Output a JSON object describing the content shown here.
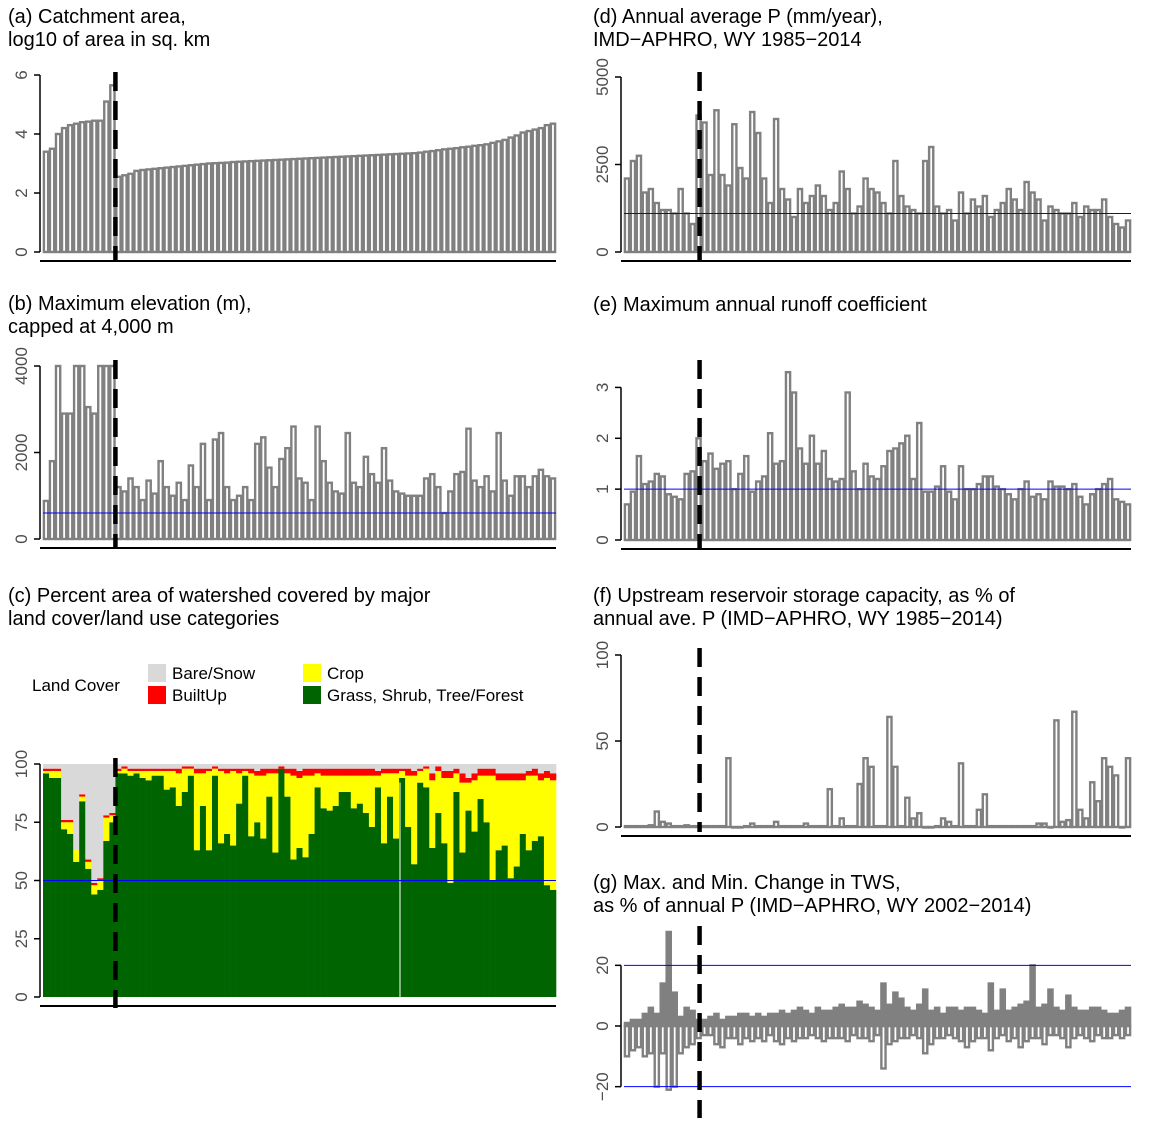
{
  "panels": {
    "a": {
      "title1": "(a) Catchment area,",
      "title2": "log10 of area in sq. km"
    },
    "b": {
      "title1": "(b) Maximum elevation (m),",
      "title2": "capped at 4,000 m"
    },
    "c": {
      "title1": "(c) Percent area of watershed covered by major",
      "title2": "land cover/land use categories"
    },
    "d": {
      "title1": "(d) Annual average P (mm/year),",
      "title2": "IMD−APHRO, WY 1985−2014"
    },
    "e": {
      "title1": "(e) Maximum annual runoff coefficient",
      "title2": ""
    },
    "f": {
      "title1": "(f) Upstream reservoir storage capacity, as % of",
      "title2": "annual ave. P (IMD−APHRO, WY 1985−2014)"
    },
    "g": {
      "title1": "(g) Max. and Min. Change in TWS,",
      "title2": "as % of annual P (IMD−APHRO, WY 2002−2014)"
    }
  },
  "legend": {
    "title": "Land Cover",
    "items": [
      {
        "label": "Bare/Snow",
        "color": "#d9d9d9"
      },
      {
        "label": "Crop",
        "color": "#ffff00"
      },
      {
        "label": "BuiltUp",
        "color": "#ff0000"
      },
      {
        "label": "Grass, Shrub, Tree/Forest",
        "color": "#006400"
      }
    ]
  },
  "colors": {
    "bar_outline": "#808080",
    "ref_line": "#0000ff",
    "divider": "#000000"
  },
  "chart_data": [
    {
      "id": "a",
      "type": "bar",
      "n": 85,
      "divider_after": 12,
      "ylim": [
        0,
        6
      ],
      "yticks": [
        "0",
        "2",
        "4",
        "6"
      ],
      "ylabel": "",
      "xlabel": "",
      "values": [
        3.4,
        3.5,
        4.0,
        4.2,
        4.3,
        4.35,
        4.4,
        4.42,
        4.45,
        4.45,
        5.1,
        5.65,
        2.55,
        2.6,
        2.65,
        2.75,
        2.78,
        2.8,
        2.82,
        2.84,
        2.86,
        2.88,
        2.9,
        2.92,
        2.94,
        2.96,
        2.98,
        3.0,
        3.01,
        3.02,
        3.03,
        3.05,
        3.06,
        3.07,
        3.08,
        3.09,
        3.1,
        3.11,
        3.12,
        3.13,
        3.14,
        3.15,
        3.16,
        3.17,
        3.18,
        3.19,
        3.2,
        3.21,
        3.22,
        3.23,
        3.24,
        3.25,
        3.26,
        3.27,
        3.28,
        3.29,
        3.3,
        3.31,
        3.32,
        3.33,
        3.34,
        3.35,
        3.37,
        3.4,
        3.42,
        3.45,
        3.48,
        3.5,
        3.52,
        3.55,
        3.57,
        3.6,
        3.62,
        3.65,
        3.7,
        3.75,
        3.8,
        3.88,
        3.95,
        4.05,
        4.1,
        4.15,
        4.2,
        4.3,
        4.35
      ]
    },
    {
      "id": "b",
      "type": "bar",
      "n": 85,
      "divider_after": 12,
      "ylim": [
        0,
        4000
      ],
      "yticks": [
        "0",
        "2000",
        "4000"
      ],
      "ref_line": 600,
      "ylabel": "",
      "xlabel": "",
      "values": [
        880,
        1800,
        4000,
        2900,
        2900,
        4000,
        4000,
        3050,
        2900,
        4000,
        4000,
        4000,
        1200,
        1100,
        1400,
        1200,
        900,
        1350,
        1050,
        1800,
        1200,
        1000,
        1300,
        900,
        1700,
        1200,
        2200,
        900,
        2300,
        2450,
        1200,
        900,
        1000,
        1200,
        900,
        2200,
        2350,
        1650,
        1200,
        1850,
        2100,
        2600,
        1400,
        1300,
        900,
        2600,
        1800,
        1300,
        1100,
        1050,
        2450,
        1300,
        1200,
        1900,
        1500,
        1300,
        2100,
        1350,
        1100,
        1050,
        1000,
        1000,
        1000,
        1400,
        1500,
        1200,
        600,
        1100,
        1500,
        1550,
        2550,
        1350,
        1200,
        1450,
        1100,
        2450,
        1350,
        1000,
        1450,
        1450,
        1200,
        1450,
        1600,
        1450,
        1400
      ]
    },
    {
      "id": "c",
      "type": "stacked_bar",
      "n": 85,
      "divider_after": 12,
      "ylim": [
        0,
        100
      ],
      "yticks": [
        "0",
        "25",
        "50",
        "75",
        "100"
      ],
      "ref_line": 50,
      "series": [
        {
          "name": "Grass, Shrub, Tree/Forest",
          "color": "#006400",
          "values": [
            96,
            94,
            94,
            72,
            70,
            58,
            84,
            55,
            44,
            46,
            67,
            75,
            96,
            96,
            95,
            96,
            94,
            93,
            95,
            95,
            89,
            90,
            82,
            88,
            95,
            63,
            82,
            63,
            95,
            66,
            70,
            65,
            83,
            95,
            69,
            75,
            68,
            86,
            62,
            98,
            86,
            59,
            64,
            60,
            70,
            90,
            81,
            80,
            82,
            88,
            88,
            81,
            83,
            79,
            73,
            90,
            66,
            86,
            68,
            94,
            73,
            57,
            92,
            90,
            64,
            79,
            66,
            49,
            88,
            62,
            80,
            71,
            85,
            75,
            50,
            63,
            65,
            51,
            56,
            70,
            63,
            67,
            69,
            48,
            46
          ]
        },
        {
          "name": "Crop",
          "color": "#ffff00",
          "values": [
            1,
            3,
            3,
            3,
            5,
            5,
            2,
            3,
            4,
            4,
            10,
            3,
            1,
            2,
            2,
            1,
            3,
            4,
            2,
            2,
            8,
            7,
            14,
            10,
            3,
            33,
            14,
            34,
            3,
            31,
            26,
            32,
            13,
            2,
            27,
            20,
            27,
            10,
            34,
            0,
            10,
            36,
            30,
            35,
            25,
            6,
            14,
            15,
            13,
            7,
            7,
            14,
            12,
            16,
            22,
            5,
            30,
            10,
            28,
            3,
            22,
            38,
            5,
            8,
            29,
            18,
            28,
            45,
            8,
            30,
            12,
            22,
            10,
            20,
            45,
            30,
            28,
            42,
            37,
            23,
            32,
            28,
            24,
            46,
            47
          ]
        },
        {
          "name": "BuiltUp",
          "color": "#ff0000",
          "values": [
            1,
            1,
            1,
            1,
            1,
            0,
            1,
            1,
            1,
            1,
            1,
            1,
            1,
            1,
            1,
            1,
            1,
            1,
            1,
            1,
            1,
            1,
            2,
            1,
            1,
            2,
            2,
            1,
            1,
            1,
            2,
            1,
            2,
            1,
            2,
            2,
            3,
            2,
            2,
            1,
            2,
            3,
            3,
            3,
            3,
            2,
            3,
            3,
            3,
            3,
            3,
            3,
            3,
            3,
            3,
            2,
            2,
            2,
            2,
            1,
            3,
            2,
            1,
            1,
            3,
            2,
            3,
            3,
            2,
            4,
            2,
            3,
            3,
            3,
            3,
            3,
            3,
            3,
            3,
            3,
            2,
            3,
            3,
            3,
            3
          ]
        },
        {
          "name": "Bare/Snow",
          "color": "#d9d9d9",
          "values": [
            2,
            2,
            2,
            24,
            24,
            37,
            13,
            41,
            51,
            49,
            22,
            21,
            2,
            1,
            2,
            2,
            2,
            2,
            2,
            2,
            2,
            2,
            2,
            1,
            1,
            2,
            2,
            2,
            1,
            2,
            2,
            2,
            2,
            2,
            2,
            3,
            2,
            2,
            2,
            1,
            2,
            2,
            3,
            2,
            2,
            2,
            2,
            2,
            2,
            2,
            2,
            2,
            2,
            2,
            2,
            3,
            2,
            2,
            2,
            2,
            2,
            3,
            2,
            1,
            4,
            1,
            3,
            3,
            2,
            4,
            6,
            4,
            2,
            2,
            2,
            4,
            4,
            4,
            4,
            4,
            3,
            2,
            4,
            3,
            4
          ]
        }
      ]
    },
    {
      "id": "d",
      "type": "bar",
      "n": 85,
      "divider_after": 12,
      "ylim": [
        0,
        5000
      ],
      "yticks": [
        "0",
        "2500",
        "5000"
      ],
      "ref_line": 1100,
      "ylabel": "",
      "xlabel": "",
      "values": [
        2100,
        2600,
        2750,
        1700,
        1800,
        1400,
        1200,
        1200,
        1100,
        1800,
        1100,
        800,
        3900,
        3700,
        2200,
        4050,
        2200,
        1900,
        3650,
        2400,
        2100,
        4000,
        3400,
        2100,
        1400,
        3800,
        1800,
        1500,
        1000,
        1800,
        1400,
        1600,
        1900,
        1600,
        1200,
        1400,
        2300,
        1800,
        1100,
        1300,
        2100,
        1800,
        1700,
        1400,
        1100,
        2600,
        1600,
        1300,
        1200,
        1100,
        2600,
        3000,
        1300,
        1100,
        1200,
        900,
        1700,
        1100,
        1500,
        1300,
        1600,
        1000,
        1200,
        1400,
        1800,
        1500,
        1200,
        2000,
        1700,
        1500,
        900,
        1300,
        1200,
        1100,
        1100,
        1400,
        1000,
        1300,
        1200,
        1200,
        1500,
        1000,
        800,
        700,
        900
      ]
    },
    {
      "id": "e",
      "type": "bar",
      "n": 85,
      "divider_after": 12,
      "ylim": [
        0,
        3.5
      ],
      "yticks": [
        "0",
        "1",
        "2",
        "3"
      ],
      "ref_line": 1,
      "ylabel": "",
      "xlabel": "",
      "values": [
        0.7,
        0.95,
        1.65,
        1.1,
        1.15,
        1.3,
        1.25,
        0.9,
        0.85,
        0.8,
        1.3,
        1.35,
        2.0,
        1.55,
        1.7,
        1.4,
        1.5,
        1.55,
        1.0,
        1.3,
        1.65,
        0.95,
        1.15,
        1.25,
        2.1,
        1.5,
        1.55,
        3.3,
        2.9,
        1.8,
        1.5,
        2.05,
        1.5,
        1.75,
        1.2,
        1.15,
        1.2,
        2.9,
        1.35,
        1.0,
        1.5,
        1.25,
        1.2,
        1.45,
        1.75,
        1.8,
        1.9,
        2.05,
        1.2,
        2.3,
        0.95,
        0.95,
        1.05,
        1.45,
        0.95,
        0.8,
        1.45,
        1.0,
        1.0,
        1.1,
        1.25,
        1.25,
        1.05,
        1.0,
        0.9,
        0.8,
        1.0,
        1.15,
        0.85,
        0.9,
        0.8,
        1.15,
        1.05,
        1.05,
        1.0,
        1.1,
        0.85,
        0.7,
        0.9,
        1.0,
        1.1,
        1.2,
        0.8,
        0.75,
        0.7
      ]
    },
    {
      "id": "f",
      "type": "bar",
      "n": 85,
      "divider_after": 12,
      "ylim": [
        0,
        100
      ],
      "yticks": [
        "0",
        "50",
        "100"
      ],
      "ylabel": "",
      "xlabel": "",
      "values": [
        0.5,
        0.5,
        0.5,
        0.5,
        1,
        9,
        3,
        2,
        0.5,
        0.5,
        1,
        0.5,
        0.5,
        0.5,
        0.5,
        0.5,
        0.5,
        40,
        0,
        0,
        0.5,
        2,
        0.5,
        0.5,
        0.5,
        3,
        0.5,
        0.5,
        0.5,
        0.5,
        2,
        0.5,
        0.5,
        0.5,
        22,
        0.5,
        5,
        0.5,
        0.5,
        25,
        40,
        35,
        0.5,
        0.5,
        64,
        35,
        0.5,
        17,
        5,
        8,
        0,
        0,
        0.5,
        5,
        3,
        0.5,
        37,
        0.5,
        0.5,
        10,
        19,
        0.5,
        0.5,
        0.5,
        0.5,
        0.5,
        0.5,
        0.5,
        0.5,
        2,
        2,
        0,
        62,
        3,
        4,
        67,
        10,
        5,
        26,
        15,
        40,
        35,
        30,
        0,
        40
      ]
    },
    {
      "id": "g",
      "type": "bar_pos_neg",
      "n": 85,
      "divider_after": 12,
      "ylim": [
        -30,
        30
      ],
      "yticks": [
        "−20",
        "0",
        "20"
      ],
      "ref_lines": [
        20,
        -20
      ],
      "ylabel": "",
      "xlabel": "",
      "max": [
        1,
        2,
        2,
        4,
        6,
        4,
        14,
        31,
        11,
        3,
        6,
        5,
        2,
        2,
        3,
        4,
        2,
        3,
        3,
        4,
        4,
        3,
        4,
        3,
        4,
        4,
        5,
        4,
        5,
        6,
        5,
        4,
        6,
        5,
        5,
        6,
        7,
        6,
        6,
        8,
        7,
        6,
        5,
        14,
        7,
        11,
        9,
        6,
        5,
        7,
        12,
        5,
        6,
        4,
        6,
        6,
        5,
        6,
        6,
        5,
        4,
        14,
        5,
        12,
        5,
        6,
        7,
        8,
        20,
        6,
        7,
        12,
        6,
        5,
        10,
        6,
        5,
        5,
        6,
        6,
        5,
        4,
        4,
        5,
        6
      ],
      "min": [
        -10,
        -8,
        -7,
        -10,
        -9,
        -20,
        -9,
        -21,
        -20,
        -9,
        -7,
        -6,
        -4,
        -3,
        -3,
        -6,
        -7,
        -4,
        -4,
        -6,
        -4,
        -5,
        -4,
        -5,
        -3,
        -5,
        -6,
        -4,
        -5,
        -4,
        -4,
        -3,
        -4,
        -5,
        -4,
        -4,
        -4,
        -5,
        -3,
        -4,
        -4,
        -5,
        -3,
        -14,
        -6,
        -5,
        -4,
        -4,
        -3,
        -4,
        -9,
        -6,
        -4,
        -4,
        -3,
        -4,
        -5,
        -7,
        -5,
        -4,
        -4,
        -8,
        -4,
        -3,
        -5,
        -4,
        -7,
        -5,
        -4,
        -4,
        -6,
        -3,
        -3,
        -4,
        -7,
        -4,
        -3,
        -4,
        -5,
        -3,
        -4,
        -4,
        -3,
        -4,
        -3
      ]
    }
  ]
}
